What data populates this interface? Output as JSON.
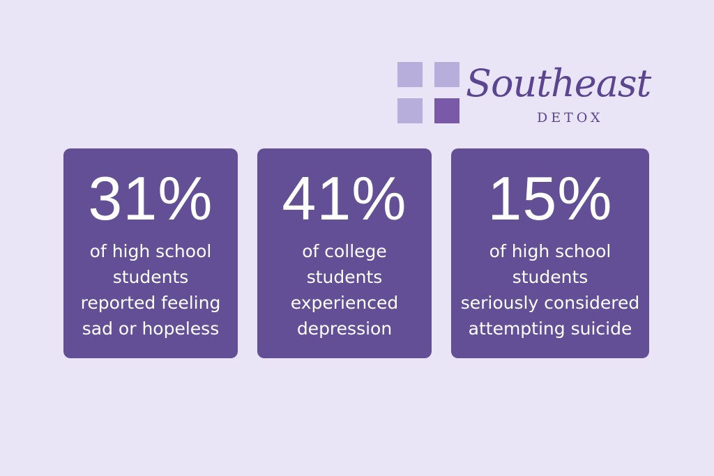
{
  "brand": {
    "name_script": "Southeast",
    "name_sub": "DETOX",
    "logo_icon": "four-squares-logo-icon",
    "colors": {
      "light_square": "#b7aedc",
      "dark_square": "#7a5aa8",
      "text": "#5b4591"
    }
  },
  "colors": {
    "background": "#e9e4f6",
    "card": "#634f95",
    "card_text": "#ffffff"
  },
  "stats": [
    {
      "value": "31%",
      "lines": [
        "of high school",
        "students",
        "reported feeling",
        "sad or hopeless"
      ]
    },
    {
      "value": "41%",
      "lines": [
        "of college",
        "students",
        "experienced",
        "depression"
      ]
    },
    {
      "value": "15%",
      "lines": [
        "of high school",
        "students",
        "seriously considered",
        "attempting suicide"
      ]
    }
  ]
}
